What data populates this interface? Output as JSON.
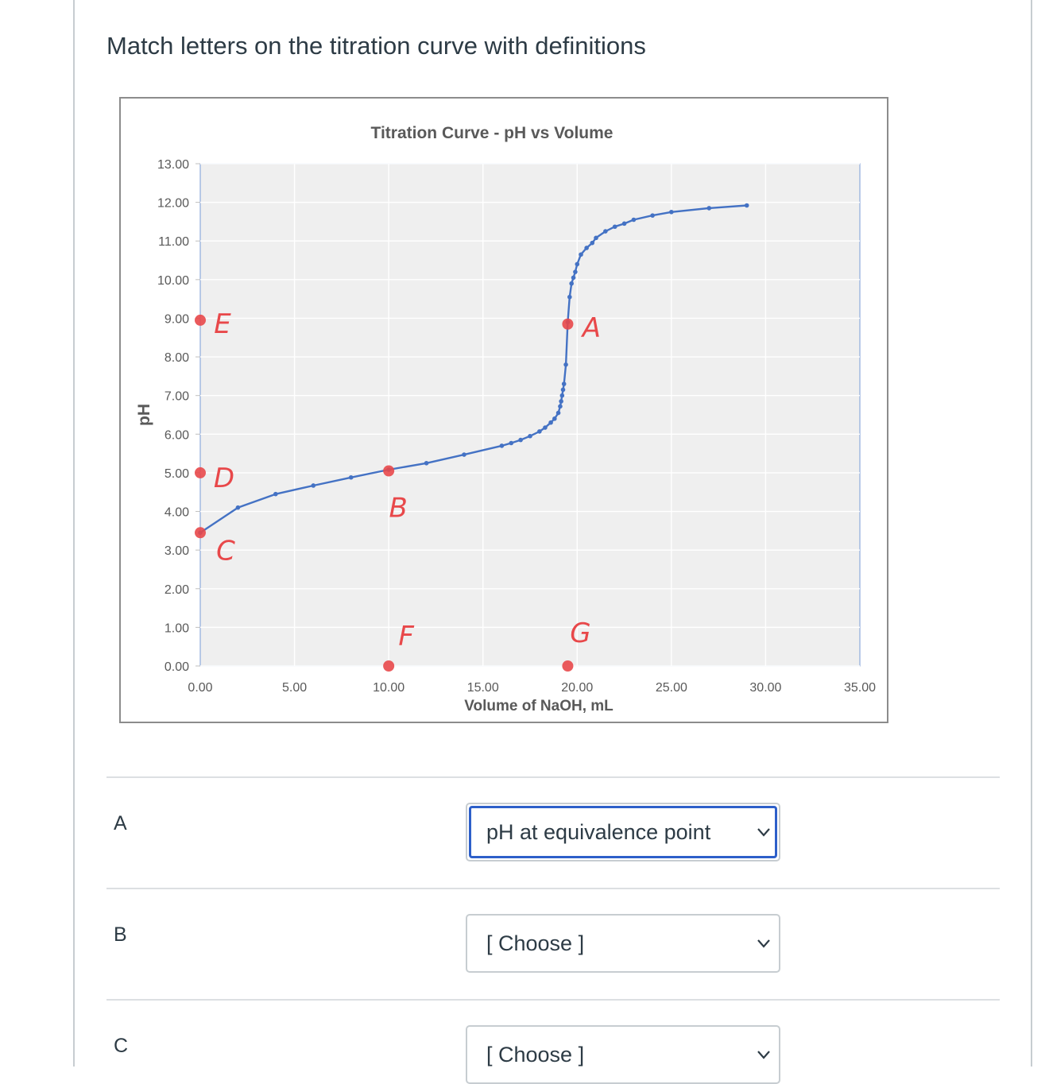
{
  "question": {
    "text": "Match letters on the titration curve with definitions"
  },
  "chart_data": {
    "type": "line",
    "title": "Titration Curve - pH vs Volume",
    "xlabel": "Volume of NaOH, mL",
    "ylabel": "pH",
    "xlim": [
      0,
      35
    ],
    "ylim": [
      0,
      13
    ],
    "x_ticks": [
      "0.00",
      "5.00",
      "10.00",
      "15.00",
      "20.00",
      "25.00",
      "30.00",
      "35.00"
    ],
    "y_ticks": [
      "0.00",
      "1.00",
      "2.00",
      "3.00",
      "4.00",
      "5.00",
      "6.00",
      "7.00",
      "8.00",
      "9.00",
      "10.00",
      "11.00",
      "12.00",
      "13.00"
    ],
    "grid": true,
    "series": [
      {
        "color": "#4472c4",
        "x": [
          0,
          2,
          4,
          6,
          8,
          10,
          12,
          14,
          16,
          16.5,
          17,
          17.5,
          18,
          18.3,
          18.6,
          18.8,
          19,
          19.1,
          19.15,
          19.2,
          19.25,
          19.3,
          19.4,
          19.5,
          19.6,
          19.7,
          19.8,
          19.9,
          20,
          20.2,
          20.5,
          20.8,
          21,
          21.5,
          22,
          22.5,
          23,
          24,
          25,
          27,
          29
        ],
        "y": [
          3.45,
          4.1,
          4.45,
          4.67,
          4.88,
          5.08,
          5.25,
          5.47,
          5.7,
          5.77,
          5.85,
          5.95,
          6.07,
          6.17,
          6.3,
          6.4,
          6.55,
          6.72,
          6.85,
          7.0,
          7.15,
          7.3,
          7.8,
          8.9,
          9.55,
          9.9,
          10.05,
          10.2,
          10.4,
          10.65,
          10.82,
          10.95,
          11.08,
          11.25,
          11.37,
          11.45,
          11.55,
          11.66,
          11.75,
          11.85,
          11.92
        ]
      }
    ],
    "annotations": [
      {
        "label": "A",
        "x": 19.5,
        "y": 8.85,
        "color": "#e8484a"
      },
      {
        "label": "B",
        "x": 10,
        "y": 5.05,
        "color": "#e8484a"
      },
      {
        "label": "C",
        "x": 0,
        "y": 3.45,
        "color": "#e8484a"
      },
      {
        "label": "D",
        "x": 0,
        "y": 5.0,
        "color": "#e8484a"
      },
      {
        "label": "E",
        "x": 0,
        "y": 8.95,
        "color": "#e8484a"
      },
      {
        "label": "F",
        "x": 10,
        "y": 0,
        "color": "#e8484a"
      },
      {
        "label": "G",
        "x": 19.5,
        "y": 0,
        "color": "#e8484a"
      }
    ]
  },
  "rows": [
    {
      "letter": "A",
      "selected": "pH at equivalence point",
      "focused": true
    },
    {
      "letter": "B",
      "selected": "[ Choose ]",
      "focused": false
    },
    {
      "letter": "C",
      "selected": "[ Choose ]",
      "focused": false
    }
  ],
  "colors": {
    "accent": "#2d5fc9",
    "curve": "#4472c4",
    "markup": "#e8484a"
  }
}
